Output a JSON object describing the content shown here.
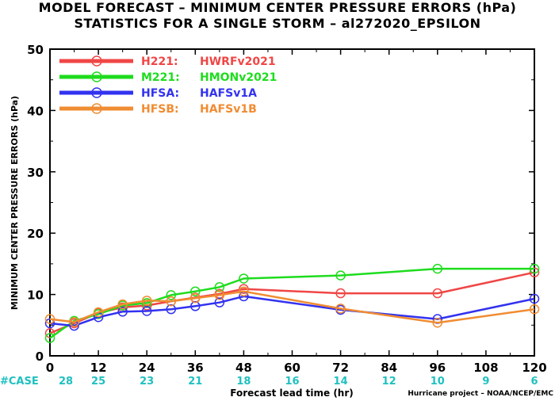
{
  "title_line1": "MODEL FORECAST – MINIMUM CENTER PRESSURE ERRORS (hPa)",
  "title_line2": "STATISTICS FOR A SINGLE STORM – al272020_EPSILON",
  "credit": "Hurricane project – NOAA/NCEP/EMC",
  "case_label": "#CASE",
  "colors": {
    "case_label": "#20c0c0",
    "case_values": "#20c0c0",
    "axis": "#000000"
  },
  "chart_data": {
    "type": "line",
    "xlabel": "Forecast lead time (hr)",
    "ylabel": "MINIMUM CENTER PRESSURE ERRORS (hPa)",
    "xlim": [
      0,
      120
    ],
    "ylim": [
      0,
      50
    ],
    "xticks": [
      0,
      12,
      24,
      36,
      48,
      60,
      72,
      84,
      96,
      108,
      120
    ],
    "yticks": [
      0,
      10,
      20,
      30,
      40,
      50
    ],
    "grid": false,
    "legend_position": "top-left",
    "case_counts": [
      {
        "x": 0,
        "n": 28
      },
      {
        "x": 12,
        "n": 25
      },
      {
        "x": 24,
        "n": 23
      },
      {
        "x": 36,
        "n": 21
      },
      {
        "x": 48,
        "n": 18
      },
      {
        "x": 60,
        "n": 16
      },
      {
        "x": 72,
        "n": 14
      },
      {
        "x": 84,
        "n": 12
      },
      {
        "x": 96,
        "n": 10
      },
      {
        "x": 108,
        "n": 9
      },
      {
        "x": 120,
        "n": 6
      }
    ],
    "series": [
      {
        "code": "H221:",
        "name": "HWRFv2021",
        "color": "#f04646",
        "points": [
          [
            0,
            3.7
          ],
          [
            6,
            5.3
          ],
          [
            12,
            7.0
          ],
          [
            18,
            7.9
          ],
          [
            24,
            8.2
          ],
          [
            30,
            8.9
          ],
          [
            36,
            9.5
          ],
          [
            42,
            10.1
          ],
          [
            48,
            10.9
          ],
          [
            72,
            10.2
          ],
          [
            96,
            10.2
          ],
          [
            120,
            13.6
          ]
        ]
      },
      {
        "code": "M221:",
        "name": "HMONv2021",
        "color": "#1edc1e",
        "points": [
          [
            0,
            2.9
          ],
          [
            6,
            5.7
          ],
          [
            12,
            6.8
          ],
          [
            18,
            8.2
          ],
          [
            24,
            8.6
          ],
          [
            30,
            9.9
          ],
          [
            36,
            10.5
          ],
          [
            42,
            11.2
          ],
          [
            48,
            12.6
          ],
          [
            72,
            13.1
          ],
          [
            96,
            14.2
          ],
          [
            120,
            14.2
          ]
        ]
      },
      {
        "code": "HFSA:",
        "name": "HAFSv1A",
        "color": "#3232f0",
        "points": [
          [
            0,
            5.3
          ],
          [
            6,
            4.9
          ],
          [
            12,
            6.3
          ],
          [
            18,
            7.2
          ],
          [
            24,
            7.3
          ],
          [
            30,
            7.6
          ],
          [
            36,
            8.1
          ],
          [
            42,
            8.7
          ],
          [
            48,
            9.7
          ],
          [
            72,
            7.5
          ],
          [
            96,
            6.0
          ],
          [
            120,
            9.3
          ]
        ]
      },
      {
        "code": "HFSB:",
        "name": "HAFSv1B",
        "color": "#f08c32",
        "points": [
          [
            0,
            6.0
          ],
          [
            6,
            5.5
          ],
          [
            12,
            7.1
          ],
          [
            18,
            8.4
          ],
          [
            24,
            9.0
          ],
          [
            30,
            8.9
          ],
          [
            36,
            9.4
          ],
          [
            42,
            9.9
          ],
          [
            48,
            10.5
          ],
          [
            72,
            7.7
          ],
          [
            96,
            5.4
          ],
          [
            120,
            7.6
          ]
        ]
      }
    ]
  }
}
